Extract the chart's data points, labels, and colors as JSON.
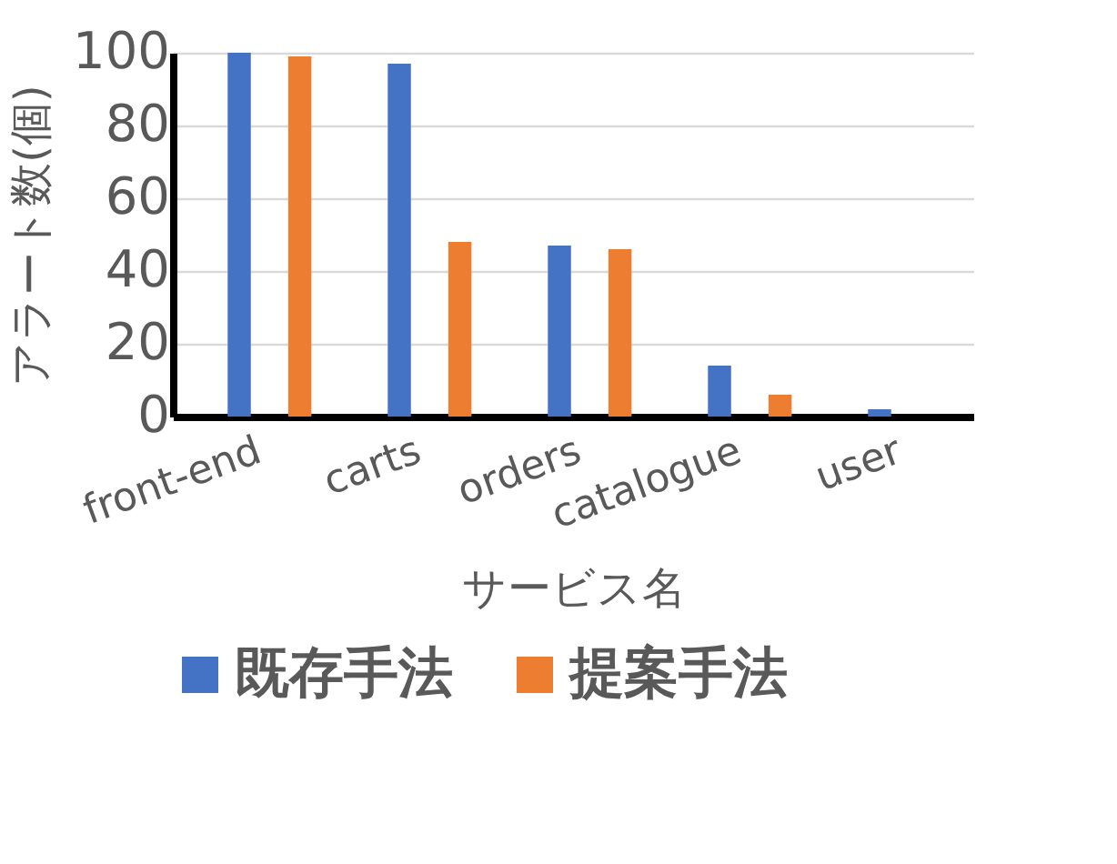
{
  "chart_data": {
    "type": "bar",
    "xlabel": "サービス名",
    "ylabel": "アラート数(個)",
    "categories": [
      "front-end",
      "carts",
      "orders",
      "catalogue",
      "user"
    ],
    "series": [
      {
        "name": "既存手法",
        "color": "#4472c4",
        "values": [
          100,
          97,
          47,
          14,
          2
        ]
      },
      {
        "name": "提案手法",
        "color": "#ed7d31",
        "values": [
          99,
          48,
          46,
          6,
          0
        ]
      }
    ],
    "ylim": [
      0,
      100
    ],
    "yticks": [
      0,
      20,
      40,
      60,
      80,
      100
    ],
    "grid": "y",
    "legend": "bottom"
  }
}
